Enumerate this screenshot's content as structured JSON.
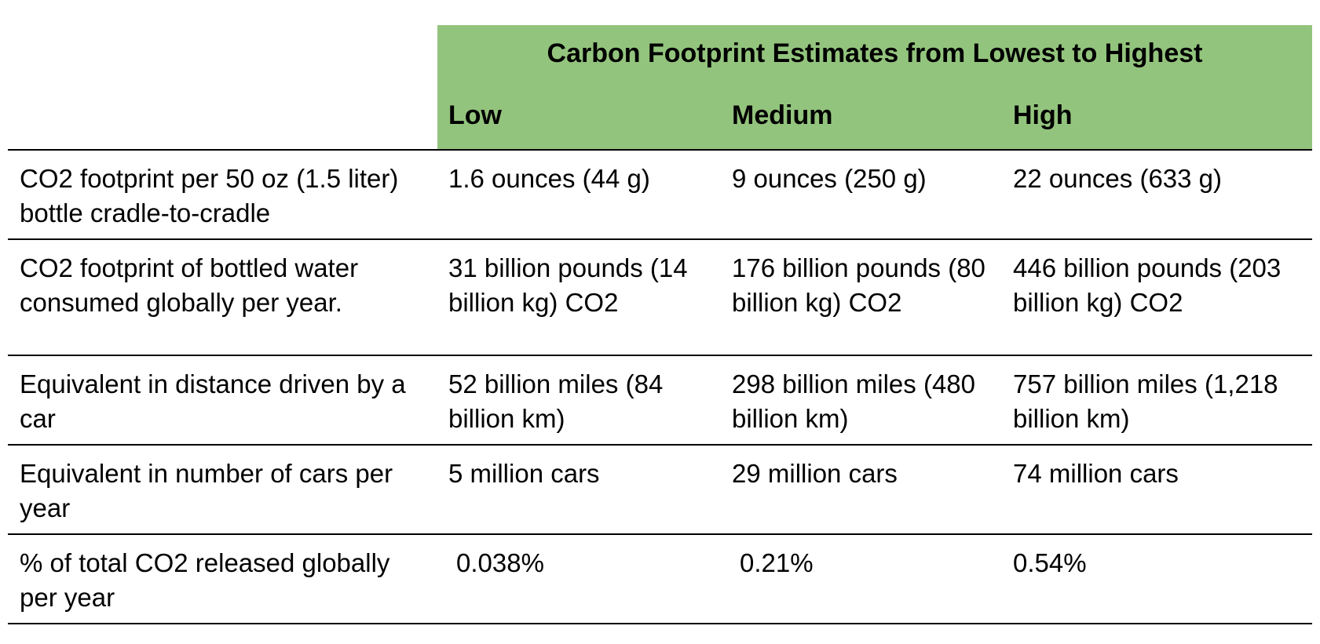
{
  "table": {
    "group_header": "Carbon Footprint Estimates from Lowest to Highest",
    "columns": [
      "Low",
      "Medium",
      "High"
    ],
    "rows": [
      {
        "label": "CO2 footprint per 50 oz (1.5 liter) bottle cradle-to-cradle",
        "values": [
          "1.6 ounces (44 g)",
          "9 ounces (250 g)",
          "22 ounces (633 g)"
        ]
      },
      {
        "label": "CO2 footprint of bottled water consumed globally per year.",
        "values": [
          "31 billion pounds (14 billion kg) CO2",
          "176 billion pounds (80 billion kg) CO2",
          "446 billion pounds (203 billion kg) CO2"
        ]
      },
      {
        "label": "Equivalent in distance driven by a car",
        "values": [
          "52 billion miles (84 billion km)",
          "298 billion miles (480 billion km)",
          "757 billion miles (1,218 billion km)"
        ]
      },
      {
        "label": "Equivalent in number of cars per year",
        "values": [
          "5 million cars",
          "29 million cars",
          "74 million cars"
        ]
      },
      {
        "label": "% of total CO2 released globally per year",
        "values": [
          "0.038%",
          "0.21%",
          "0.54%"
        ]
      }
    ]
  },
  "colors": {
    "header_background": "#93c47d",
    "rule": "#000000"
  }
}
